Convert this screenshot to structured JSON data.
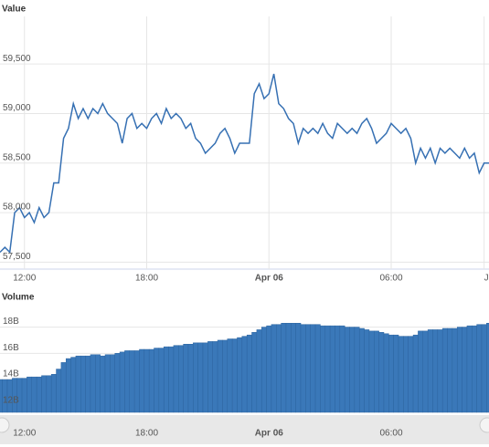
{
  "chart_data": [
    {
      "type": "line",
      "title": "Value",
      "color": "#3670b3",
      "grid": true,
      "xlim": [
        0,
        100
      ],
      "ylim": [
        57430,
        59980
      ],
      "xticks": [
        {
          "value": 5,
          "label": "12:00"
        },
        {
          "value": 30,
          "label": "18:00"
        },
        {
          "value": 55,
          "label": "Apr 06"
        },
        {
          "value": 80,
          "label": "06:00"
        },
        {
          "value": 99,
          "label": "J"
        }
      ],
      "yticks": [
        {
          "value": 57500,
          "label": "57,500"
        },
        {
          "value": 58000,
          "label": "58,000"
        },
        {
          "value": 58500,
          "label": "58,500"
        },
        {
          "value": 59000,
          "label": "59,000"
        },
        {
          "value": 59500,
          "label": "59,500"
        }
      ],
      "values": [
        57600,
        57650,
        57600,
        58000,
        58050,
        57950,
        58000,
        57900,
        58050,
        57950,
        58000,
        58300,
        58300,
        58750,
        58850,
        59100,
        58950,
        59050,
        58950,
        59050,
        59000,
        59100,
        59000,
        58950,
        58900,
        58700,
        58950,
        59000,
        58850,
        58900,
        58850,
        58950,
        59000,
        58900,
        59050,
        58950,
        59000,
        58950,
        58850,
        58900,
        58750,
        58700,
        58600,
        58650,
        58700,
        58800,
        58850,
        58750,
        58600,
        58700,
        58700,
        58700,
        59200,
        59300,
        59150,
        59200,
        59400,
        59100,
        59050,
        58950,
        58900,
        58700,
        58850,
        58800,
        58850,
        58800,
        58900,
        58800,
        58750,
        58900,
        58850,
        58800,
        58850,
        58800,
        58900,
        58950,
        58850,
        58700,
        58750,
        58800,
        58900,
        58850,
        58800,
        58850,
        58750,
        58500,
        58650,
        58550,
        58650,
        58500,
        58650,
        58600,
        58650,
        58600,
        58550,
        58650,
        58550,
        58600,
        58400,
        58500,
        58500
      ]
    },
    {
      "type": "bar",
      "title": "Volume",
      "color": "#3a78b9",
      "grid": true,
      "xlim": [
        0,
        100
      ],
      "ylim": [
        11.5,
        19.5
      ],
      "xticks": [
        {
          "value": 5,
          "label": "12:00"
        },
        {
          "value": 30,
          "label": "18:00"
        },
        {
          "value": 55,
          "label": "Apr 06"
        },
        {
          "value": 80,
          "label": "06:00"
        }
      ],
      "yticks": [
        {
          "value": 12,
          "label": "12B"
        },
        {
          "value": 14,
          "label": "14B"
        },
        {
          "value": 16,
          "label": "16B"
        },
        {
          "value": 18,
          "label": "18B"
        }
      ],
      "values": [
        14.0,
        14.0,
        14.0,
        14.1,
        14.1,
        14.1,
        14.2,
        14.2,
        14.2,
        14.3,
        14.3,
        14.4,
        14.8,
        15.3,
        15.6,
        15.7,
        15.8,
        15.8,
        15.8,
        15.9,
        15.9,
        15.8,
        15.9,
        15.9,
        16.0,
        16.1,
        16.2,
        16.2,
        16.2,
        16.3,
        16.3,
        16.3,
        16.4,
        16.4,
        16.5,
        16.5,
        16.6,
        16.6,
        16.7,
        16.7,
        16.8,
        16.8,
        16.8,
        16.9,
        16.9,
        17.0,
        17.0,
        17.1,
        17.1,
        17.2,
        17.3,
        17.4,
        17.6,
        17.8,
        18.0,
        18.1,
        18.2,
        18.2,
        18.3,
        18.3,
        18.3,
        18.3,
        18.2,
        18.2,
        18.2,
        18.2,
        18.1,
        18.1,
        18.1,
        18.1,
        18.1,
        18.0,
        18.0,
        18.0,
        17.9,
        17.8,
        17.7,
        17.7,
        17.6,
        17.5,
        17.4,
        17.4,
        17.3,
        17.3,
        17.3,
        17.4,
        17.7,
        17.7,
        17.8,
        17.8,
        17.8,
        17.9,
        17.9,
        17.9,
        18.0,
        18.0,
        18.1,
        18.1,
        18.2,
        18.2,
        18.3
      ]
    }
  ]
}
